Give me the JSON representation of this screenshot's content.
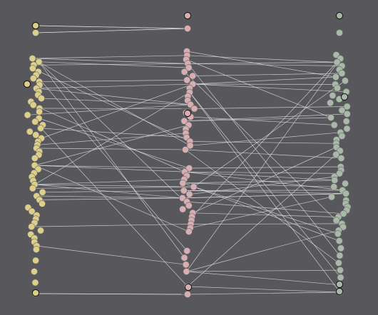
{
  "diagram": {
    "type": "three-column node-link (hive-style) plot",
    "background": "#58575c",
    "link_color": "#e4e4e4",
    "columns": [
      {
        "key": "left",
        "color": "#dccf8a",
        "node_count": 60,
        "highlighted_nodes": 3
      },
      {
        "key": "middle",
        "color": "#d7aeb1",
        "node_count": 52,
        "highlighted_nodes": 3
      },
      {
        "key": "right",
        "color": "#a8b9a7",
        "node_count": 60,
        "highlighted_nodes": 4
      }
    ],
    "approx_link_count": 90
  }
}
